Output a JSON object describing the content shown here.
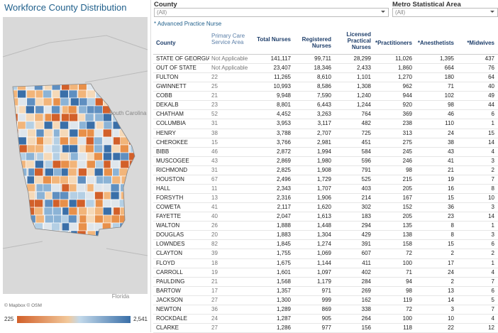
{
  "title": "Workforce County Distribution",
  "map_labels": {
    "state_east": "South Carolina",
    "state_south": "Florida",
    "attribution": "© Mapbox © OSM"
  },
  "legend": {
    "min": "225",
    "max": "2,541"
  },
  "filters": [
    {
      "label": "County",
      "value": "(All)"
    },
    {
      "label": "Metro Statistical Area",
      "value": "(All)"
    }
  ],
  "note": "* Advanced Practice Nurse",
  "table": {
    "columns": [
      "County",
      "Primary Care Service Area",
      "Total Nurses",
      "Registered Nurses",
      "Licensed Practical Nurses",
      "*Practitioners",
      "*Anesthetists",
      "*Midwives"
    ],
    "rows": [
      [
        "STATE OF GEORGIA",
        "Not Applicable",
        "141,117",
        "99,711",
        "28,299",
        "11,026",
        "1,395",
        "437"
      ],
      [
        "OUT OF STATE",
        "Not Applicable",
        "23,407",
        "18,346",
        "2,433",
        "1,860",
        "664",
        "76"
      ],
      [
        "FULTON",
        "22",
        "11,265",
        "8,610",
        "1,101",
        "1,270",
        "180",
        "64"
      ],
      [
        "GWINNETT",
        "25",
        "10,993",
        "8,586",
        "1,308",
        "962",
        "71",
        "40"
      ],
      [
        "COBB",
        "21",
        "9,948",
        "7,590",
        "1,240",
        "944",
        "102",
        "49"
      ],
      [
        "DEKALB",
        "23",
        "8,801",
        "6,443",
        "1,244",
        "920",
        "98",
        "44"
      ],
      [
        "CHATHAM",
        "52",
        "4,452",
        "3,263",
        "764",
        "369",
        "46",
        "6"
      ],
      [
        "COLUMBIA",
        "31",
        "3,953",
        "3,117",
        "482",
        "238",
        "110",
        "1"
      ],
      [
        "HENRY",
        "38",
        "3,788",
        "2,707",
        "725",
        "313",
        "24",
        "15"
      ],
      [
        "CHEROKEE",
        "15",
        "3,766",
        "2,981",
        "451",
        "275",
        "38",
        "14"
      ],
      [
        "BIBB",
        "46",
        "2,872",
        "1,994",
        "584",
        "245",
        "43",
        "4"
      ],
      [
        "MUSCOGEE",
        "43",
        "2,869",
        "1,980",
        "596",
        "246",
        "41",
        "3"
      ],
      [
        "RICHMOND",
        "31",
        "2,825",
        "1,908",
        "791",
        "98",
        "21",
        "2"
      ],
      [
        "HOUSTON",
        "67",
        "2,496",
        "1,729",
        "525",
        "215",
        "19",
        "7"
      ],
      [
        "HALL",
        "11",
        "2,343",
        "1,707",
        "403",
        "205",
        "16",
        "8"
      ],
      [
        "FORSYTH",
        "13",
        "2,316",
        "1,906",
        "214",
        "167",
        "15",
        "10"
      ],
      [
        "COWETA",
        "41",
        "2,117",
        "1,620",
        "302",
        "152",
        "36",
        "3"
      ],
      [
        "FAYETTE",
        "40",
        "2,047",
        "1,613",
        "183",
        "205",
        "23",
        "14"
      ],
      [
        "WALTON",
        "26",
        "1,888",
        "1,448",
        "294",
        "135",
        "8",
        "1"
      ],
      [
        "DOUGLAS",
        "20",
        "1,883",
        "1,304",
        "429",
        "138",
        "8",
        "3"
      ],
      [
        "LOWNDES",
        "82",
        "1,845",
        "1,274",
        "391",
        "158",
        "15",
        "6"
      ],
      [
        "CLAYTON",
        "39",
        "1,755",
        "1,069",
        "607",
        "72",
        "2",
        "2"
      ],
      [
        "FLOYD",
        "18",
        "1,675",
        "1,144",
        "411",
        "100",
        "17",
        "1"
      ],
      [
        "CARROLL",
        "19",
        "1,601",
        "1,097",
        "402",
        "71",
        "24",
        "4"
      ],
      [
        "PAULDING",
        "21",
        "1,568",
        "1,179",
        "284",
        "94",
        "2",
        "7"
      ],
      [
        "BARTOW",
        "17",
        "1,357",
        "971",
        "269",
        "98",
        "13",
        "6"
      ],
      [
        "JACKSON",
        "27",
        "1,300",
        "999",
        "162",
        "119",
        "14",
        "5"
      ],
      [
        "NEWTON",
        "36",
        "1,289",
        "869",
        "338",
        "72",
        "3",
        "7"
      ],
      [
        "ROCKDALE",
        "24",
        "1,287",
        "905",
        "264",
        "100",
        "10",
        "4"
      ],
      [
        "CLARKE",
        "27",
        "1,286",
        "977",
        "156",
        "118",
        "22",
        "12"
      ]
    ]
  }
}
